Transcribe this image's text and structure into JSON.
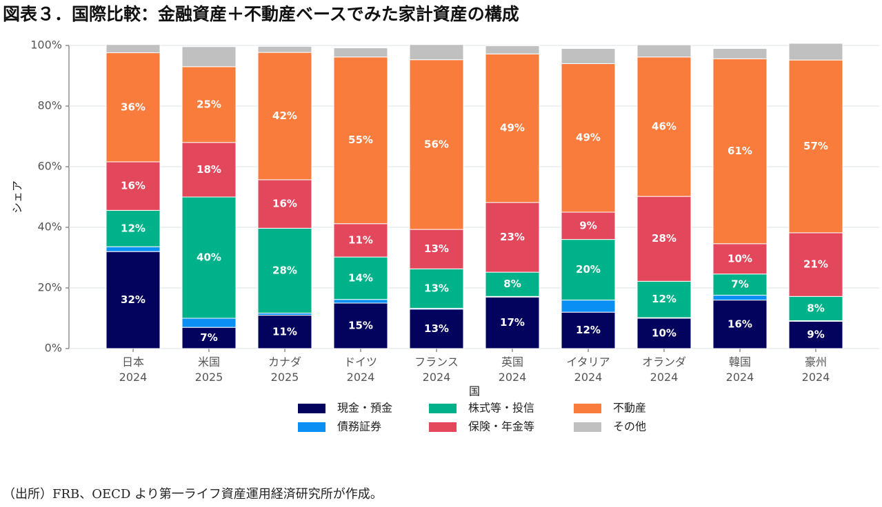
{
  "chart_data": {
    "type": "stacked-bar",
    "title": "図表３．国際比較：金融資産＋不動産ベースでみた家計資産の構成",
    "x_label": "国",
    "y_label": "シェア",
    "source": "（出所）FRB、OECD より第一ライフ資産運用経済研究所が作成。",
    "categories": [
      [
        "日本",
        "2024"
      ],
      [
        "米国",
        "2025"
      ],
      [
        "カナダ",
        "2025"
      ],
      [
        "ドイツ",
        "2024"
      ],
      [
        "フランス",
        "2024"
      ],
      [
        "英国",
        "2024"
      ],
      [
        "イタリア",
        "2024"
      ],
      [
        "オランダ",
        "2024"
      ],
      [
        "韓国",
        "2024"
      ],
      [
        "豪州",
        "2024"
      ]
    ],
    "ylim": [
      0,
      100
    ],
    "yticks": [
      {
        "value": 0,
        "label": "0%"
      },
      {
        "value": 20,
        "label": "20%"
      },
      {
        "value": 40,
        "label": "40%"
      },
      {
        "value": 60,
        "label": "60%"
      },
      {
        "value": 80,
        "label": "80%"
      },
      {
        "value": 100,
        "label": "100%"
      }
    ],
    "grid": true,
    "series": [
      {
        "name": "現金・預金",
        "color": "#03035e",
        "values": [
          32,
          7,
          11,
          15,
          13,
          17,
          12,
          10,
          16,
          9
        ],
        "value_labels": [
          "32%",
          "7%",
          "11%",
          "15%",
          "13%",
          "17%",
          "12%",
          "10%",
          "16%",
          "9%"
        ]
      },
      {
        "name": "債務証券",
        "color": "#0a8ff5",
        "values": [
          1.6,
          3,
          0.7,
          1.2,
          0.3,
          0.2,
          4,
          0.2,
          1.6,
          0.2
        ]
      },
      {
        "name": "株式等・投信",
        "color": "#00b28a",
        "values": [
          12,
          40,
          28,
          14,
          13,
          8,
          20,
          12,
          7,
          8
        ],
        "value_labels": [
          "12%",
          "40%",
          "28%",
          "14%",
          "13%",
          "8%",
          "20%",
          "12%",
          "7%",
          "8%"
        ]
      },
      {
        "name": "保険・年金等",
        "color": "#e2475c",
        "values": [
          16,
          18,
          16,
          11,
          13,
          23,
          9,
          28,
          10,
          21
        ],
        "value_labels": [
          "16%",
          "18%",
          "16%",
          "11%",
          "13%",
          "23%",
          "9%",
          "28%",
          "10%",
          "21%"
        ]
      },
      {
        "name": "不動産",
        "color": "#f97c3c",
        "values": [
          36,
          25,
          42,
          55,
          56,
          49,
          49,
          46,
          61,
          57
        ],
        "value_labels": [
          "36%",
          "25%",
          "42%",
          "55%",
          "56%",
          "49%",
          "49%",
          "46%",
          "61%",
          "57%"
        ]
      },
      {
        "name": "その他",
        "color": "#c0c0c0",
        "values": [
          2.7,
          6.6,
          2,
          3,
          5,
          2.7,
          5,
          4,
          3.4,
          5.5
        ]
      }
    ]
  }
}
